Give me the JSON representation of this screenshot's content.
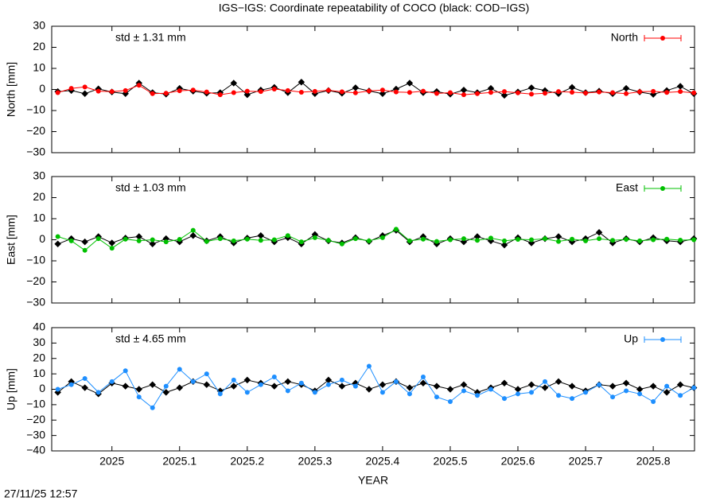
{
  "title": "IGS−IGS: Coordinate repeatability of COCO (black: COD−IGS)",
  "timestamp": "27/11/25 12:57",
  "chart_data": [
    {
      "type": "line",
      "ylabel": "North [mm]",
      "annotation": "std ± 1.31 mm",
      "legend": "top-right",
      "xlim": [
        2024.911,
        2025.861
      ],
      "xticks": [
        2025,
        2025.1,
        2025.2,
        2025.3,
        2025.4,
        2025.5,
        2025.6,
        2025.7,
        2025.8
      ],
      "ylim": [
        -30,
        30
      ],
      "yticks": [
        {
          "value": -30,
          "label": "−30"
        },
        {
          "value": -20,
          "label": "−20"
        },
        {
          "value": -10,
          "label": "−10"
        },
        0,
        10,
        20,
        30
      ],
      "x": [
        2024.92,
        2024.94,
        2024.96,
        2024.98,
        2025.0,
        2025.02,
        2025.04,
        2025.06,
        2025.08,
        2025.1,
        2025.12,
        2025.14,
        2025.16,
        2025.18,
        2025.2,
        2025.22,
        2025.24,
        2025.26,
        2025.28,
        2025.3,
        2025.32,
        2025.34,
        2025.36,
        2025.38,
        2025.4,
        2025.42,
        2025.44,
        2025.46,
        2025.48,
        2025.5,
        2025.52,
        2025.54,
        2025.56,
        2025.58,
        2025.6,
        2025.62,
        2025.64,
        2025.66,
        2025.68,
        2025.7,
        2025.72,
        2025.74,
        2025.76,
        2025.78,
        2025.8,
        2025.82,
        2025.84,
        2025.86
      ],
      "series": [
        {
          "color": "#000000",
          "values": [
            -1,
            -0.5,
            -2,
            0.3,
            -1.2,
            -2,
            3,
            -1.5,
            -2.2,
            0.5,
            -0.8,
            -1.8,
            -1.5,
            3,
            -2.5,
            -0.3,
            1,
            -1.5,
            3.5,
            -2,
            -0.5,
            -1.8,
            0.8,
            -0.7,
            -2,
            0.2,
            3,
            -1.5,
            -1,
            -2.2,
            -0.3,
            -1.5,
            0.5,
            -2.8,
            -1.2,
            0.8,
            -0.5,
            -2,
            1,
            -1.5,
            -0.8,
            -2,
            0.5,
            -1.2,
            -2.3,
            -0.5,
            1.5,
            -2
          ]
        },
        {
          "name": "North",
          "color": "#ff0000",
          "values": [
            -1.5,
            0.5,
            1.2,
            -0.8,
            -1,
            -0.5,
            2,
            -2,
            -1.8,
            -0.6,
            -0.3,
            -1.2,
            -2.5,
            -1.5,
            -0.8,
            -1,
            0.2,
            -0.5,
            -1.3,
            -0.9,
            -0.4,
            -1.1,
            -1.6,
            -0.7,
            -0.3,
            -1.2,
            -1.4,
            -0.8,
            -1.9,
            -1.5,
            -2.5,
            -2,
            -1.4,
            -1,
            -1.6,
            -2.2,
            -1.8,
            -1,
            -1.3,
            -1.7,
            -1.2,
            -1.5,
            -2,
            -1.1,
            -0.9,
            -1.4,
            -1,
            -1.6
          ]
        }
      ]
    },
    {
      "type": "line",
      "ylabel": "East [mm]",
      "annotation": "std ± 1.03 mm",
      "legend": "top-right",
      "xlim": [
        2024.911,
        2025.861
      ],
      "xticks": [
        2025,
        2025.1,
        2025.2,
        2025.3,
        2025.4,
        2025.5,
        2025.6,
        2025.7,
        2025.8
      ],
      "ylim": [
        -30,
        30
      ],
      "yticks": [
        {
          "value": -30,
          "label": "−30"
        },
        {
          "value": -20,
          "label": "−20"
        },
        {
          "value": -10,
          "label": "−10"
        },
        0,
        10,
        20,
        30
      ],
      "x": [
        2024.92,
        2024.94,
        2024.96,
        2024.98,
        2025.0,
        2025.02,
        2025.04,
        2025.06,
        2025.08,
        2025.1,
        2025.12,
        2025.14,
        2025.16,
        2025.18,
        2025.2,
        2025.22,
        2025.24,
        2025.26,
        2025.28,
        2025.3,
        2025.32,
        2025.34,
        2025.36,
        2025.38,
        2025.4,
        2025.42,
        2025.44,
        2025.46,
        2025.48,
        2025.5,
        2025.52,
        2025.54,
        2025.56,
        2025.58,
        2025.6,
        2025.62,
        2025.64,
        2025.66,
        2025.68,
        2025.7,
        2025.72,
        2025.74,
        2025.76,
        2025.78,
        2025.8,
        2025.82,
        2025.84,
        2025.86
      ],
      "series": [
        {
          "color": "#000000",
          "values": [
            -2,
            0.5,
            -1,
            1.5,
            -1.5,
            0.8,
            1.5,
            -2,
            0.5,
            -1,
            2,
            -0.5,
            1.5,
            -1.5,
            0.8,
            2,
            -1,
            1,
            -2,
            2.5,
            -0.5,
            -1.5,
            1,
            -0.8,
            2,
            4.5,
            -1,
            1.5,
            -2,
            0.5,
            -1,
            1.5,
            -0.5,
            -2.5,
            1,
            -1.5,
            0.5,
            1.5,
            -1,
            0.5,
            3.5,
            -1.5,
            0.5,
            -1,
            1,
            -0.5,
            -1,
            0.5
          ]
        },
        {
          "name": "East",
          "color": "#00c000",
          "values": [
            1.5,
            -0.5,
            -5,
            0.5,
            -4,
            0.3,
            -0.5,
            0,
            -1,
            0.2,
            4.5,
            -0.8,
            0.5,
            -0.5,
            0.3,
            -0.3,
            0,
            2,
            -1,
            1,
            -0.3,
            -2,
            0.5,
            -0.5,
            1,
            5,
            -0.5,
            0.3,
            -0.8,
            0,
            0.5,
            -0.3,
            0.8,
            -0.5,
            0.2,
            0,
            0.5,
            -0.8,
            0.3,
            -0.5,
            0.5,
            -0.3,
            0.2,
            -0.5,
            0,
            0.3,
            -0.2,
            0
          ]
        }
      ]
    },
    {
      "type": "line",
      "ylabel": "Up [mm]",
      "xlabel": "YEAR",
      "annotation": "std ± 4.65 mm",
      "legend": "top-right",
      "xlim": [
        2024.911,
        2025.861
      ],
      "xticks": [
        2025,
        2025.1,
        2025.2,
        2025.3,
        2025.4,
        2025.5,
        2025.6,
        2025.7,
        2025.8
      ],
      "ylim": [
        -40,
        40
      ],
      "yticks": [
        {
          "value": -40,
          "label": "−40"
        },
        {
          "value": -30,
          "label": "−30"
        },
        {
          "value": -20,
          "label": "−20"
        },
        {
          "value": -10,
          "label": "−10"
        },
        0,
        10,
        20,
        30,
        40
      ],
      "x": [
        2024.92,
        2024.94,
        2024.96,
        2024.98,
        2025.0,
        2025.02,
        2025.04,
        2025.06,
        2025.08,
        2025.1,
        2025.12,
        2025.14,
        2025.16,
        2025.18,
        2025.2,
        2025.22,
        2025.24,
        2025.26,
        2025.28,
        2025.3,
        2025.32,
        2025.34,
        2025.36,
        2025.38,
        2025.4,
        2025.42,
        2025.44,
        2025.46,
        2025.48,
        2025.5,
        2025.52,
        2025.54,
        2025.56,
        2025.58,
        2025.6,
        2025.62,
        2025.64,
        2025.66,
        2025.68,
        2025.7,
        2025.72,
        2025.74,
        2025.76,
        2025.78,
        2025.8,
        2025.82,
        2025.84,
        2025.86
      ],
      "series": [
        {
          "color": "#000000",
          "values": [
            -2,
            5,
            1,
            -3,
            4,
            2,
            0,
            3,
            -2,
            1,
            5,
            3,
            -1,
            2,
            6,
            4,
            2,
            5,
            3,
            -1,
            6,
            2,
            4,
            0,
            3,
            5,
            1,
            4,
            2,
            0,
            3,
            -2,
            1,
            4,
            0,
            3,
            1,
            5,
            2,
            -1,
            3,
            2,
            4,
            0,
            2,
            -2,
            3,
            1
          ]
        },
        {
          "name": "Up",
          "color": "#1e8fff",
          "values": [
            0,
            3,
            7,
            -2,
            5,
            12,
            -5,
            -12,
            2,
            13,
            5,
            10,
            -3,
            6,
            -2,
            3,
            8,
            -1,
            4,
            -2,
            3,
            6,
            2,
            15,
            -2,
            5,
            -3,
            8,
            -5,
            -8,
            -1,
            -4,
            0,
            -6,
            -3,
            -2,
            5,
            -4,
            -6,
            -2,
            3,
            -5,
            -1,
            -3,
            -8,
            2,
            -4,
            1
          ]
        }
      ]
    }
  ]
}
